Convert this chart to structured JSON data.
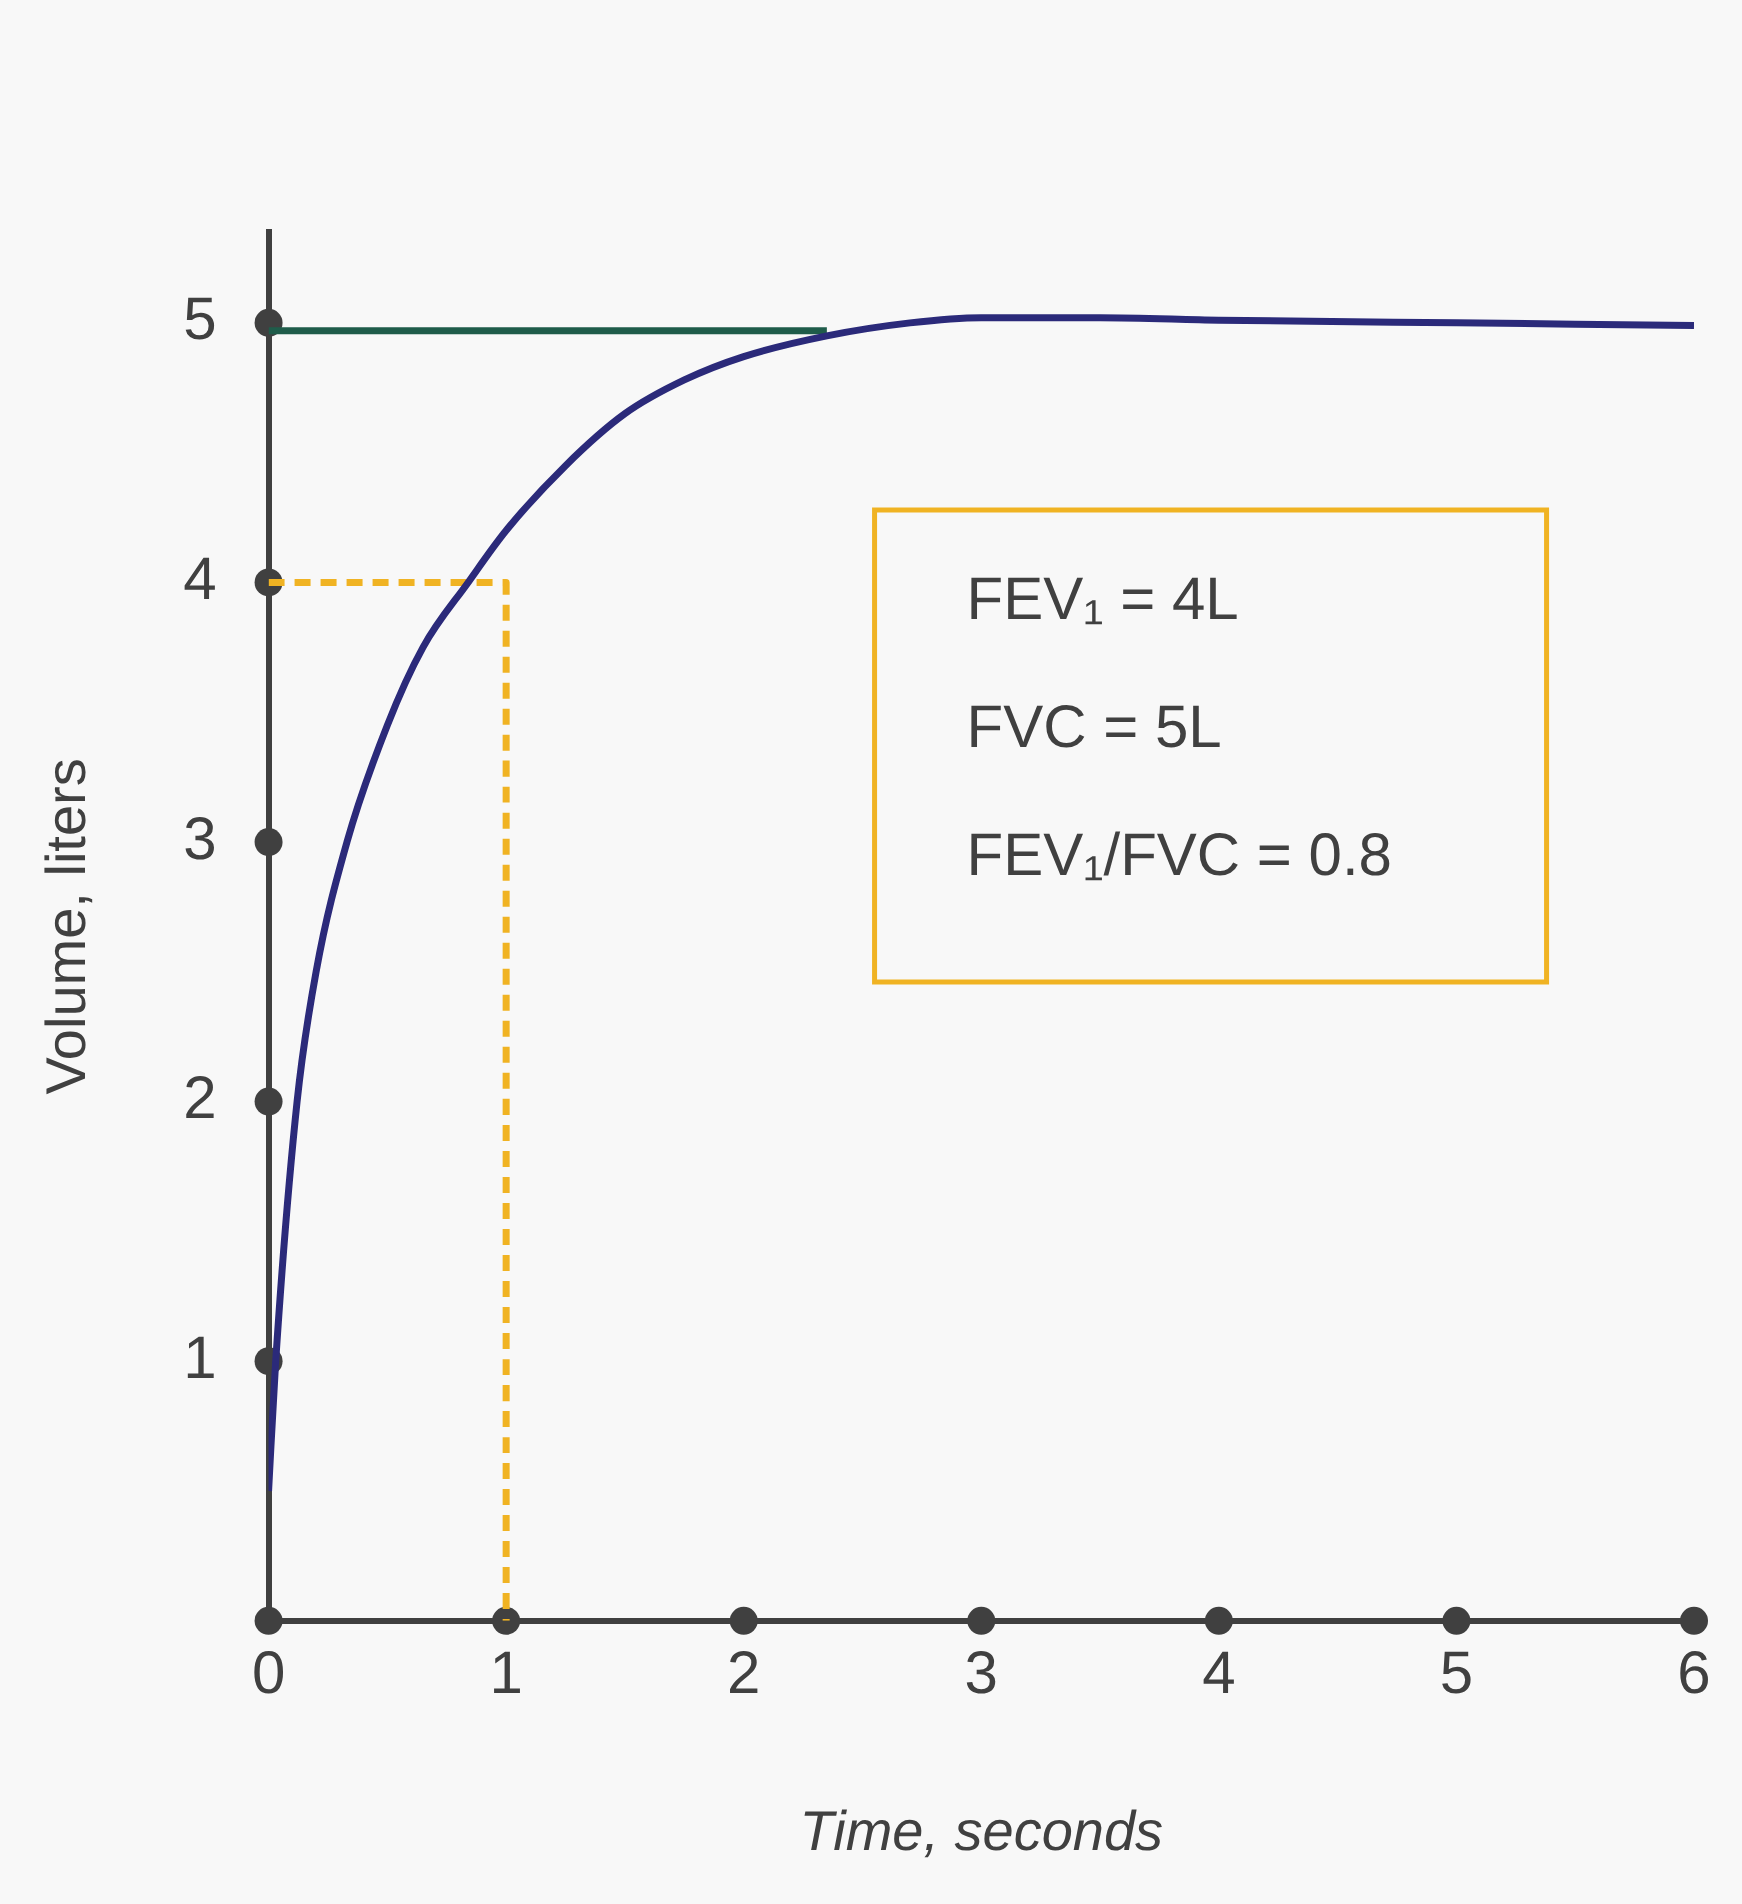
{
  "chart_data": {
    "type": "line",
    "xlabel": "Time, seconds",
    "ylabel": "Volume, liters",
    "xlim": [
      0,
      6
    ],
    "ylim": [
      0,
      5.35
    ],
    "xticks": [
      0,
      1,
      2,
      3,
      4,
      5,
      6
    ],
    "yticks": [
      1,
      2,
      3,
      4,
      5
    ],
    "series": [
      {
        "color": "#2b2a7a",
        "x": [
          0,
          0.03,
          0.12,
          0.2,
          0.33,
          0.5,
          0.65,
          0.84,
          1.0,
          1.25,
          1.5,
          1.75,
          2.0,
          2.35,
          2.7,
          3.0,
          3.5,
          4,
          5,
          6
        ],
        "values": [
          0.5,
          1.0,
          2.0,
          2.5,
          3.0,
          3.45,
          3.75,
          4.0,
          4.2,
          4.45,
          4.65,
          4.78,
          4.87,
          4.95,
          5.0,
          5.02,
          5.02,
          5.01,
          5.0,
          4.99
        ],
        "line_style": "solid"
      },
      {
        "color": "#1f5c4a",
        "x": [
          0,
          2.35
        ],
        "values": [
          4.97,
          4.97
        ],
        "line_style": "solid"
      },
      {
        "color": "#f0b323",
        "x": [
          0,
          1,
          1
        ],
        "values": [
          4,
          4,
          0
        ],
        "line_style": "dashed"
      },
      {
        "type": "scatter",
        "color": "#404040",
        "marker": "circle",
        "x": [
          0,
          1,
          2,
          3,
          4,
          5,
          6,
          0,
          0,
          0,
          0,
          0
        ],
        "values": [
          0,
          0,
          0,
          0,
          0,
          0,
          0,
          1,
          2,
          3,
          4,
          5
        ]
      }
    ],
    "annotations": [
      "FEV₁ = 4L",
      "FVC = 5L",
      "FEV₁/FVC = 0.8"
    ],
    "grid": false,
    "legend": false,
    "marker": "none"
  }
}
